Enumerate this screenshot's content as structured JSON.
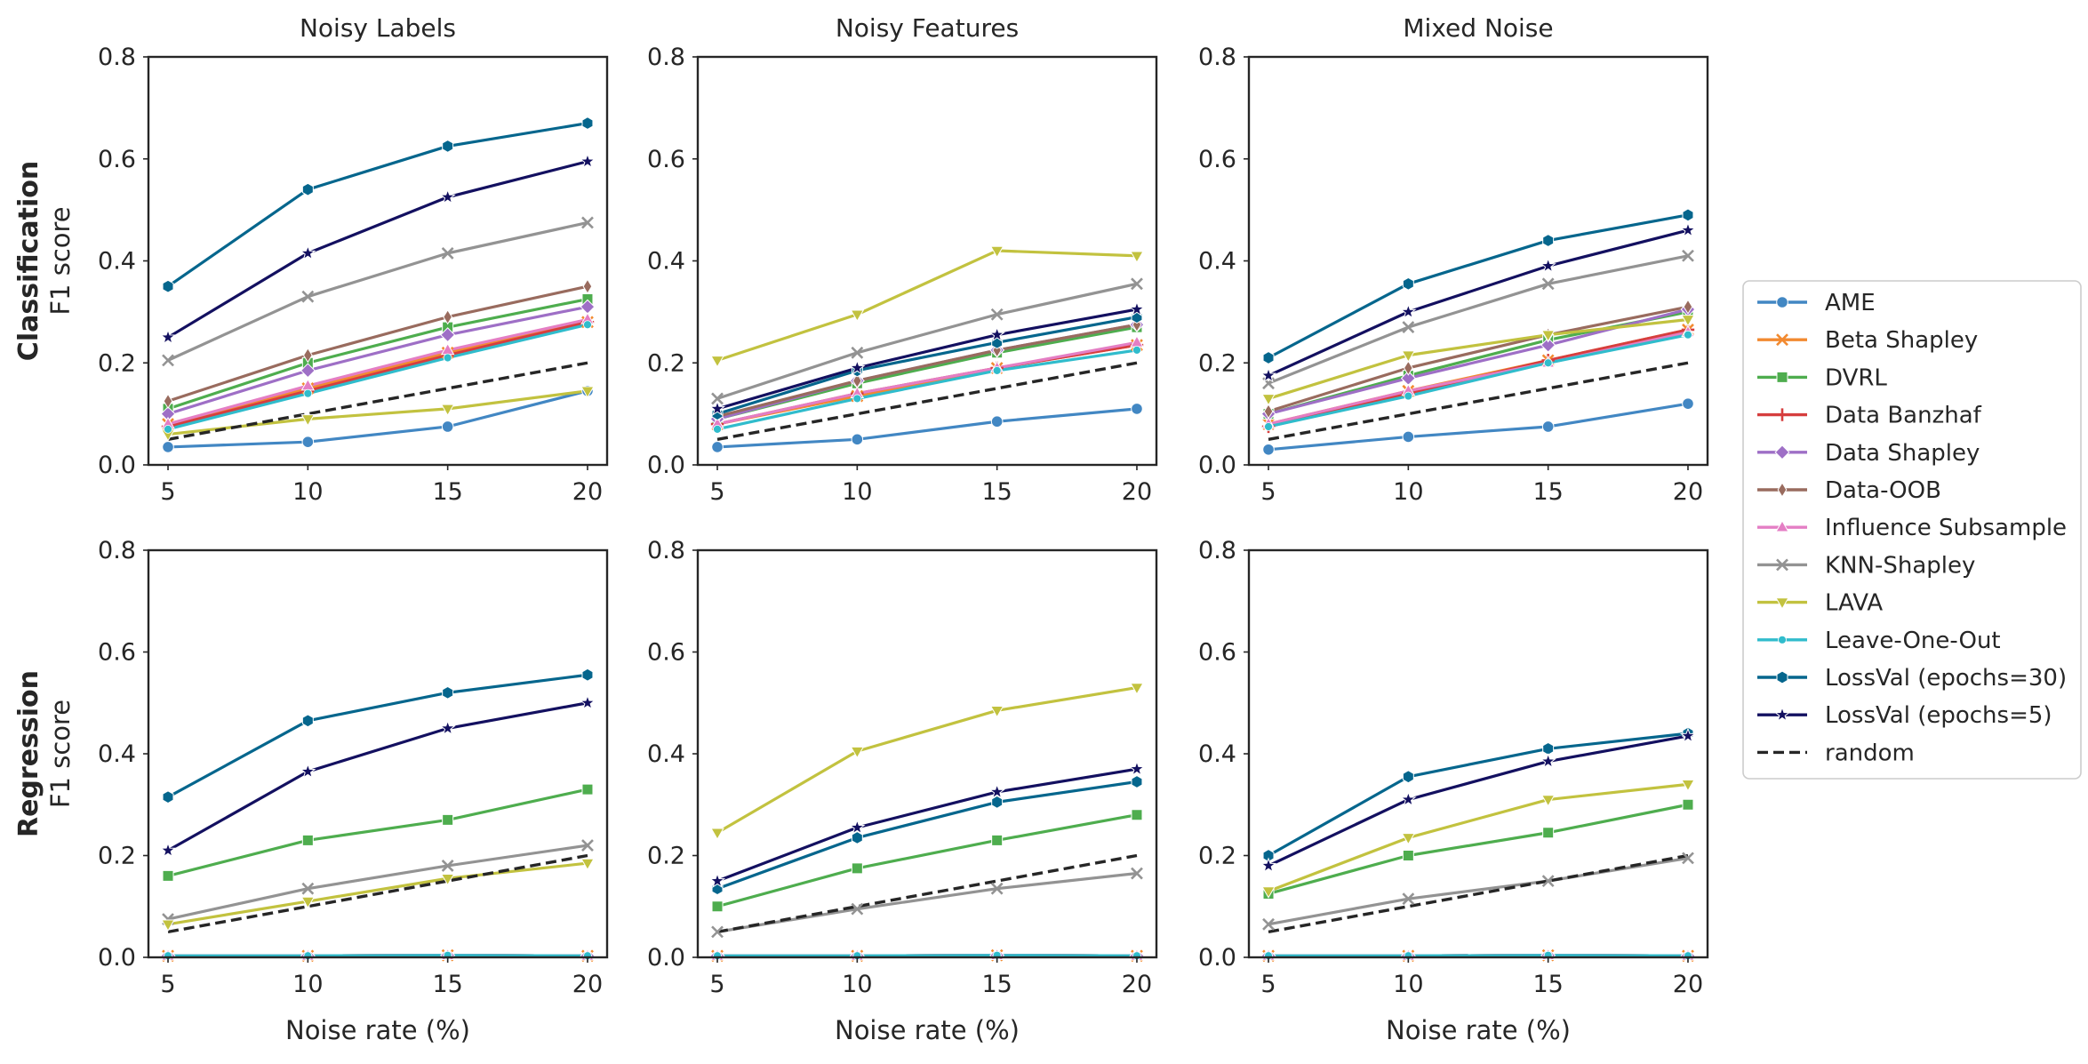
{
  "figure": {
    "rows": [
      {
        "label": "Classification",
        "ylabel": "F1 score"
      },
      {
        "label": "Regression",
        "ylabel": "F1 score"
      }
    ],
    "xlabel": "Noise rate (%)",
    "xticks": [
      5,
      10,
      15,
      20
    ],
    "yticks": [
      0.0,
      0.2,
      0.4,
      0.6,
      0.8
    ],
    "ytick_labels": [
      "0.0",
      "0.2",
      "0.4",
      "0.6",
      "0.8"
    ],
    "col_titles": [
      "Noisy Labels",
      "Noisy Features",
      "Mixed Noise"
    ]
  },
  "legend": {
    "placement": "right",
    "entries": [
      {
        "name": "AME",
        "color": "#4287c3",
        "marker": "circle",
        "dash": false
      },
      {
        "name": "Beta Shapley",
        "color": "#f28a30",
        "marker": "x",
        "dash": false
      },
      {
        "name": "DVRL",
        "color": "#4ead4e",
        "marker": "square",
        "dash": false
      },
      {
        "name": "Data Banzhaf",
        "color": "#d63e3e",
        "marker": "plus",
        "dash": false
      },
      {
        "name": "Data Shapley",
        "color": "#9e6fc6",
        "marker": "diamond",
        "dash": false
      },
      {
        "name": "Data-OOB",
        "color": "#996b5e",
        "marker": "thin-diamond",
        "dash": false
      },
      {
        "name": "Influence Subsample",
        "color": "#e47ec4",
        "marker": "triangle-up",
        "dash": false
      },
      {
        "name": "KNN-Shapley",
        "color": "#939393",
        "marker": "x",
        "dash": false
      },
      {
        "name": "LAVA",
        "color": "#c2c23f",
        "marker": "triangle-down",
        "dash": false
      },
      {
        "name": "Leave-One-Out",
        "color": "#30bccc",
        "marker": "dot",
        "dash": false
      },
      {
        "name": "LossVal (epochs=30)",
        "color": "#05668d",
        "marker": "hexagon",
        "dash": false
      },
      {
        "name": "LossVal (epochs=5)",
        "color": "#131060",
        "marker": "star",
        "dash": false
      },
      {
        "name": "random",
        "color": "#262626",
        "marker": "none",
        "dash": true
      }
    ]
  },
  "chart_data": [
    {
      "type": "line",
      "title": "Noisy Labels",
      "row": "Classification",
      "xlabel": "",
      "ylabel": "F1 score",
      "xlim": [
        4.3,
        20.7
      ],
      "ylim": [
        0,
        0.8
      ],
      "x": [
        5,
        10,
        15,
        20
      ],
      "series": [
        {
          "name": "AME",
          "values": [
            0.035,
            0.045,
            0.075,
            0.145
          ]
        },
        {
          "name": "Beta Shapley",
          "values": [
            0.08,
            0.15,
            0.22,
            0.28
          ]
        },
        {
          "name": "DVRL",
          "values": [
            0.11,
            0.2,
            0.27,
            0.325
          ]
        },
        {
          "name": "Data Banzhaf",
          "values": [
            0.075,
            0.145,
            0.215,
            0.28
          ]
        },
        {
          "name": "Data Shapley",
          "values": [
            0.1,
            0.185,
            0.255,
            0.31
          ]
        },
        {
          "name": "Data-OOB",
          "values": [
            0.125,
            0.215,
            0.29,
            0.35
          ]
        },
        {
          "name": "Influence Subsample",
          "values": [
            0.08,
            0.155,
            0.225,
            0.285
          ]
        },
        {
          "name": "KNN-Shapley",
          "values": [
            0.205,
            0.33,
            0.415,
            0.475
          ]
        },
        {
          "name": "LAVA",
          "values": [
            0.06,
            0.09,
            0.11,
            0.145
          ]
        },
        {
          "name": "Leave-One-Out",
          "values": [
            0.07,
            0.14,
            0.21,
            0.275
          ]
        },
        {
          "name": "LossVal (epochs=30)",
          "values": [
            0.35,
            0.54,
            0.625,
            0.67
          ]
        },
        {
          "name": "LossVal (epochs=5)",
          "values": [
            0.25,
            0.415,
            0.525,
            0.595
          ]
        },
        {
          "name": "random",
          "values": [
            0.05,
            0.1,
            0.15,
            0.2
          ]
        }
      ]
    },
    {
      "type": "line",
      "title": "Noisy Features",
      "row": "Classification",
      "xlabel": "",
      "ylabel": "",
      "xlim": [
        4.3,
        20.7
      ],
      "ylim": [
        0,
        0.8
      ],
      "x": [
        5,
        10,
        15,
        20
      ],
      "series": [
        {
          "name": "AME",
          "values": [
            0.035,
            0.05,
            0.085,
            0.11
          ]
        },
        {
          "name": "Beta Shapley",
          "values": [
            0.08,
            0.135,
            0.19,
            0.235
          ]
        },
        {
          "name": "DVRL",
          "values": [
            0.09,
            0.16,
            0.22,
            0.27
          ]
        },
        {
          "name": "Data Banzhaf",
          "values": [
            0.08,
            0.14,
            0.19,
            0.235
          ]
        },
        {
          "name": "Data Shapley",
          "values": [
            0.09,
            0.165,
            0.225,
            0.275
          ]
        },
        {
          "name": "Data-OOB",
          "values": [
            0.095,
            0.165,
            0.225,
            0.275
          ]
        },
        {
          "name": "Influence Subsample",
          "values": [
            0.08,
            0.14,
            0.19,
            0.24
          ]
        },
        {
          "name": "KNN-Shapley",
          "values": [
            0.13,
            0.22,
            0.295,
            0.355
          ]
        },
        {
          "name": "LAVA",
          "values": [
            0.205,
            0.295,
            0.42,
            0.41
          ]
        },
        {
          "name": "Leave-One-Out",
          "values": [
            0.07,
            0.13,
            0.185,
            0.225
          ]
        },
        {
          "name": "LossVal (epochs=30)",
          "values": [
            0.1,
            0.185,
            0.24,
            0.29
          ]
        },
        {
          "name": "LossVal (epochs=5)",
          "values": [
            0.11,
            0.19,
            0.255,
            0.305
          ]
        },
        {
          "name": "random",
          "values": [
            0.05,
            0.1,
            0.15,
            0.2
          ]
        }
      ]
    },
    {
      "type": "line",
      "title": "Mixed Noise",
      "row": "Classification",
      "xlabel": "",
      "ylabel": "",
      "xlim": [
        4.3,
        20.7
      ],
      "ylim": [
        0,
        0.8
      ],
      "x": [
        5,
        10,
        15,
        20
      ],
      "series": [
        {
          "name": "AME",
          "values": [
            0.03,
            0.055,
            0.075,
            0.12
          ]
        },
        {
          "name": "Beta Shapley",
          "values": [
            0.08,
            0.145,
            0.205,
            0.265
          ]
        },
        {
          "name": "DVRL",
          "values": [
            0.1,
            0.175,
            0.245,
            0.3
          ]
        },
        {
          "name": "Data Banzhaf",
          "values": [
            0.075,
            0.14,
            0.205,
            0.265
          ]
        },
        {
          "name": "Data Shapley",
          "values": [
            0.1,
            0.17,
            0.235,
            0.305
          ]
        },
        {
          "name": "Data-OOB",
          "values": [
            0.105,
            0.19,
            0.255,
            0.31
          ]
        },
        {
          "name": "Influence Subsample",
          "values": [
            0.08,
            0.145,
            0.2,
            0.26
          ]
        },
        {
          "name": "KNN-Shapley",
          "values": [
            0.16,
            0.27,
            0.355,
            0.41
          ]
        },
        {
          "name": "LAVA",
          "values": [
            0.13,
            0.215,
            0.255,
            0.285
          ]
        },
        {
          "name": "Leave-One-Out",
          "values": [
            0.075,
            0.135,
            0.2,
            0.255
          ]
        },
        {
          "name": "LossVal (epochs=30)",
          "values": [
            0.21,
            0.355,
            0.44,
            0.49
          ]
        },
        {
          "name": "LossVal (epochs=5)",
          "values": [
            0.175,
            0.3,
            0.39,
            0.46
          ]
        },
        {
          "name": "random",
          "values": [
            0.05,
            0.1,
            0.15,
            0.2
          ]
        }
      ]
    },
    {
      "type": "line",
      "title": "",
      "row": "Regression",
      "xlabel": "Noise rate (%)",
      "ylabel": "F1 score",
      "xlim": [
        4.3,
        20.7
      ],
      "ylim": [
        0,
        0.8
      ],
      "x": [
        5,
        10,
        15,
        20
      ],
      "series": [
        {
          "name": "AME",
          "values": [
            0.003,
            0.003,
            0.004,
            0.003
          ]
        },
        {
          "name": "Beta Shapley",
          "values": [
            0.003,
            0.003,
            0.004,
            0.003
          ]
        },
        {
          "name": "DVRL",
          "values": [
            0.16,
            0.23,
            0.27,
            0.33
          ]
        },
        {
          "name": "Data Banzhaf",
          "values": [
            0.003,
            0.003,
            0.004,
            0.003
          ]
        },
        {
          "name": "Data Shapley",
          "values": [
            0.003,
            0.003,
            0.004,
            0.003
          ]
        },
        {
          "name": "Data-OOB",
          "values": [
            0.003,
            0.003,
            0.004,
            0.003
          ]
        },
        {
          "name": "Influence Subsample",
          "values": [
            0.003,
            0.003,
            0.004,
            0.003
          ]
        },
        {
          "name": "KNN-Shapley",
          "values": [
            0.075,
            0.135,
            0.18,
            0.22
          ]
        },
        {
          "name": "LAVA",
          "values": [
            0.065,
            0.11,
            0.155,
            0.185
          ]
        },
        {
          "name": "Leave-One-Out",
          "values": [
            0.003,
            0.003,
            0.004,
            0.003
          ]
        },
        {
          "name": "LossVal (epochs=30)",
          "values": [
            0.315,
            0.465,
            0.52,
            0.555
          ]
        },
        {
          "name": "LossVal (epochs=5)",
          "values": [
            0.21,
            0.365,
            0.45,
            0.5
          ]
        },
        {
          "name": "random",
          "values": [
            0.05,
            0.1,
            0.15,
            0.2
          ]
        }
      ]
    },
    {
      "type": "line",
      "title": "",
      "row": "Regression",
      "xlabel": "Noise rate (%)",
      "ylabel": "",
      "xlim": [
        4.3,
        20.7
      ],
      "ylim": [
        0,
        0.8
      ],
      "x": [
        5,
        10,
        15,
        20
      ],
      "series": [
        {
          "name": "AME",
          "values": [
            0.003,
            0.003,
            0.004,
            0.003
          ]
        },
        {
          "name": "Beta Shapley",
          "values": [
            0.003,
            0.003,
            0.004,
            0.003
          ]
        },
        {
          "name": "DVRL",
          "values": [
            0.1,
            0.175,
            0.23,
            0.28
          ]
        },
        {
          "name": "Data Banzhaf",
          "values": [
            0.003,
            0.003,
            0.004,
            0.003
          ]
        },
        {
          "name": "Data Shapley",
          "values": [
            0.003,
            0.003,
            0.004,
            0.003
          ]
        },
        {
          "name": "Data-OOB",
          "values": [
            0.003,
            0.003,
            0.004,
            0.003
          ]
        },
        {
          "name": "Influence Subsample",
          "values": [
            0.003,
            0.003,
            0.004,
            0.003
          ]
        },
        {
          "name": "KNN-Shapley",
          "values": [
            0.05,
            0.095,
            0.135,
            0.165
          ]
        },
        {
          "name": "LAVA",
          "values": [
            0.245,
            0.405,
            0.485,
            0.53
          ]
        },
        {
          "name": "Leave-One-Out",
          "values": [
            0.003,
            0.003,
            0.004,
            0.003
          ]
        },
        {
          "name": "LossVal (epochs=30)",
          "values": [
            0.135,
            0.235,
            0.305,
            0.345
          ]
        },
        {
          "name": "LossVal (epochs=5)",
          "values": [
            0.15,
            0.255,
            0.325,
            0.37
          ]
        },
        {
          "name": "random",
          "values": [
            0.05,
            0.1,
            0.15,
            0.2
          ]
        }
      ]
    },
    {
      "type": "line",
      "title": "",
      "row": "Regression",
      "xlabel": "Noise rate (%)",
      "ylabel": "",
      "xlim": [
        4.3,
        20.7
      ],
      "ylim": [
        0,
        0.8
      ],
      "x": [
        5,
        10,
        15,
        20
      ],
      "series": [
        {
          "name": "AME",
          "values": [
            0.003,
            0.003,
            0.004,
            0.003
          ]
        },
        {
          "name": "Beta Shapley",
          "values": [
            0.003,
            0.003,
            0.004,
            0.003
          ]
        },
        {
          "name": "DVRL",
          "values": [
            0.125,
            0.2,
            0.245,
            0.3
          ]
        },
        {
          "name": "Data Banzhaf",
          "values": [
            0.003,
            0.003,
            0.004,
            0.003
          ]
        },
        {
          "name": "Data Shapley",
          "values": [
            0.003,
            0.003,
            0.004,
            0.003
          ]
        },
        {
          "name": "Data-OOB",
          "values": [
            0.003,
            0.003,
            0.004,
            0.003
          ]
        },
        {
          "name": "Influence Subsample",
          "values": [
            0.003,
            0.003,
            0.004,
            0.003
          ]
        },
        {
          "name": "KNN-Shapley",
          "values": [
            0.065,
            0.115,
            0.15,
            0.195
          ]
        },
        {
          "name": "LAVA",
          "values": [
            0.13,
            0.235,
            0.31,
            0.34
          ]
        },
        {
          "name": "Leave-One-Out",
          "values": [
            0.003,
            0.003,
            0.004,
            0.003
          ]
        },
        {
          "name": "LossVal (epochs=30)",
          "values": [
            0.2,
            0.355,
            0.41,
            0.44
          ]
        },
        {
          "name": "LossVal (epochs=5)",
          "values": [
            0.18,
            0.31,
            0.385,
            0.435
          ]
        },
        {
          "name": "random",
          "values": [
            0.05,
            0.1,
            0.15,
            0.2
          ]
        }
      ]
    }
  ]
}
